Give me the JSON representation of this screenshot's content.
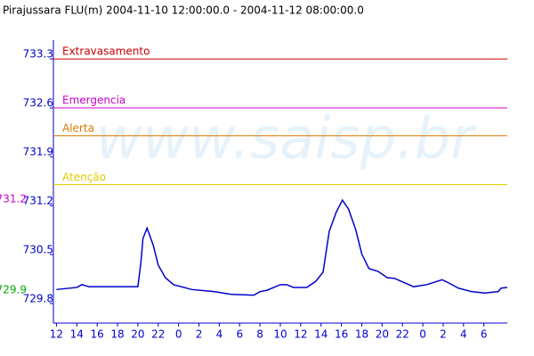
{
  "chart_data": {
    "type": "line",
    "title": "Pirajussara FLU(m) 2004-11-10 12:00:00.0 - 2004-11-12 08:00:00.0",
    "watermark": "www.saisp.br",
    "x": [
      0,
      2,
      2.5,
      3.2,
      8,
      8.3,
      8.5,
      8.9,
      9.5,
      10,
      10.7,
      11.5,
      13.3,
      15.5,
      17.2,
      19.4,
      20,
      20.7,
      22,
      22.6,
      23.3,
      24.6,
      25.5,
      26.2,
      26.8,
      27.5,
      28.1,
      28.7,
      29.4,
      30,
      30.7,
      31.6,
      32.5,
      33.2,
      34,
      35.1,
      36.4,
      37.9,
      38.6,
      39.5,
      40.8,
      42.1,
      43.4,
      43.7,
      44.3
    ],
    "series": [
      {
        "color": "#0000cc",
        "values": [
          730.0,
          730.03,
          730.07,
          730.04,
          730.04,
          730.39,
          730.73,
          730.88,
          730.64,
          730.35,
          730.17,
          730.07,
          730.0,
          729.97,
          729.93,
          729.92,
          729.97,
          729.99,
          730.07,
          730.07,
          730.03,
          730.03,
          730.12,
          730.25,
          730.83,
          731.11,
          731.28,
          731.15,
          730.86,
          730.51,
          730.3,
          730.26,
          730.17,
          730.16,
          730.11,
          730.04,
          730.07,
          730.14,
          730.09,
          730.02,
          729.97,
          729.95,
          729.97,
          730.02,
          730.03
        ]
      }
    ],
    "xlim": [
      -0.3,
      44.3
    ],
    "xticks": [
      {
        "value": 0,
        "label": "12"
      },
      {
        "value": 2,
        "label": "14"
      },
      {
        "value": 4,
        "label": "16"
      },
      {
        "value": 6,
        "label": "18"
      },
      {
        "value": 8,
        "label": "20"
      },
      {
        "value": 10,
        "label": "22"
      },
      {
        "value": 12,
        "label": "0"
      },
      {
        "value": 14,
        "label": "2"
      },
      {
        "value": 16,
        "label": "4"
      },
      {
        "value": 18,
        "label": "6"
      },
      {
        "value": 20,
        "label": "8"
      },
      {
        "value": 22,
        "label": "10"
      },
      {
        "value": 24,
        "label": "12"
      },
      {
        "value": 26,
        "label": "14"
      },
      {
        "value": 28,
        "label": "16"
      },
      {
        "value": 30,
        "label": "18"
      },
      {
        "value": 32,
        "label": "20"
      },
      {
        "value": 34,
        "label": "22"
      },
      {
        "value": 36,
        "label": "0"
      },
      {
        "value": 38,
        "label": "2"
      },
      {
        "value": 40,
        "label": "4"
      },
      {
        "value": 42,
        "label": "6"
      }
    ],
    "ylim": [
      729.52,
      733.57
    ],
    "yticks": [
      729.8,
      730.5,
      731.2,
      731.9,
      732.6,
      733.3
    ],
    "thresholds": [
      {
        "label": "Extravasamento",
        "value": 733.3,
        "color": "#cc0000"
      },
      {
        "label": "Emergencia",
        "value": 732.6,
        "color": "#cc00cc"
      },
      {
        "label": "Alerta",
        "value": 732.2,
        "color": "#dd7700"
      },
      {
        "label": "Atenção",
        "value": 731.5,
        "color": "#ddcc00"
      }
    ],
    "max_value": {
      "value": 731.2,
      "color": "#cc00cc"
    },
    "min_value": {
      "value": 729.9,
      "color": "#00aa00"
    }
  }
}
